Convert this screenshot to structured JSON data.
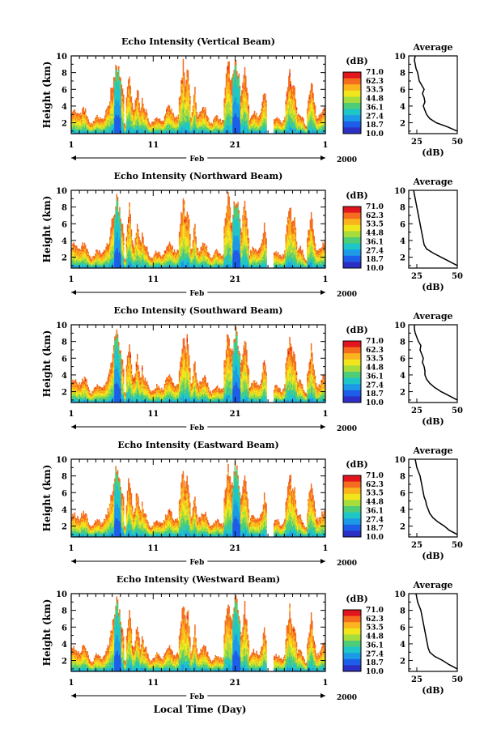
{
  "colorbar": {
    "unit": "(dB)",
    "ticks": [
      "71.0",
      "62.3",
      "53.5",
      "44.8",
      "36.1",
      "27.4",
      "18.7",
      "10.0"
    ],
    "colors": [
      "#e2141d",
      "#f46d1f",
      "#fbb31e",
      "#f1e61c",
      "#a6dc3c",
      "#4fcc78",
      "#1fc6c8",
      "#1c9ae6",
      "#1c5ee8",
      "#2d2ec4"
    ]
  },
  "x_axis": {
    "tick_labels": [
      "1",
      "11",
      "21",
      "1"
    ],
    "month_label": "Feb",
    "year_label": "2000",
    "title": "Local Time (Day)"
  },
  "chart_data": [
    {
      "type": "heatmap",
      "title": "Echo Intensity (Vertical Beam)",
      "ylabel": "Height (km)",
      "xlabel": "Local Time (Day)",
      "ylim": [
        0.7,
        10
      ],
      "y_ticks": [
        "10",
        "8",
        "6",
        "4",
        "2"
      ],
      "x_ticks": [
        "1",
        "11",
        "21",
        "1"
      ],
      "zlim": [
        10.0,
        71.0
      ],
      "profile": {
        "title": "Average",
        "xlabel": "(dB)",
        "x_ticks": [
          "25",
          "50"
        ],
        "xlim": [
          20,
          50
        ],
        "heights": [
          1,
          1.5,
          2,
          2.5,
          3,
          3.5,
          4,
          4.5,
          5,
          5.5,
          6,
          6.5,
          7,
          7.5,
          8,
          8.5,
          9,
          9.5,
          10
        ],
        "values": [
          50,
          44,
          37,
          33,
          31,
          30,
          29,
          30,
          29.5,
          28.5,
          29.5,
          28,
          26.5,
          26,
          25.5,
          24.5,
          24,
          23.5,
          24
        ]
      }
    },
    {
      "type": "heatmap",
      "title": "Echo Intensity (Northward Beam)",
      "ylabel": "Height (km)",
      "xlabel": "Local Time (Day)",
      "ylim": [
        0.7,
        10
      ],
      "y_ticks": [
        "10",
        "8",
        "6",
        "4",
        "2"
      ],
      "x_ticks": [
        "1",
        "11",
        "21",
        "1"
      ],
      "zlim": [
        10.0,
        71.0
      ],
      "profile": {
        "title": "Average",
        "xlabel": "(dB)",
        "x_ticks": [
          "25",
          "50"
        ],
        "xlim": [
          20,
          50
        ],
        "heights": [
          1,
          1.5,
          2,
          2.5,
          3,
          3.5,
          4,
          4.5,
          5,
          5.5,
          6,
          6.5,
          7,
          7.5,
          8,
          8.5,
          9,
          9.5,
          10
        ],
        "values": [
          50,
          45,
          40,
          35,
          31,
          29.5,
          29,
          28.5,
          28,
          27.5,
          27,
          26.5,
          26,
          25.5,
          25,
          24.5,
          24,
          23.5,
          23
        ]
      }
    },
    {
      "type": "heatmap",
      "title": "Echo Intensity (Southward Beam)",
      "ylabel": "Height (km)",
      "xlabel": "Local Time (Day)",
      "ylim": [
        0.7,
        10
      ],
      "y_ticks": [
        "10",
        "8",
        "6",
        "4",
        "2"
      ],
      "x_ticks": [
        "1",
        "11",
        "21",
        "1"
      ],
      "zlim": [
        10.0,
        71.0
      ],
      "profile": {
        "title": "Average",
        "xlabel": "(dB)",
        "x_ticks": [
          "25",
          "50"
        ],
        "xlim": [
          20,
          50
        ],
        "heights": [
          1,
          1.5,
          2,
          2.5,
          3,
          3.5,
          4,
          4.5,
          5,
          5.5,
          6,
          6.5,
          7,
          7.5,
          8,
          8.5,
          9,
          9.5,
          10
        ],
        "values": [
          50,
          45,
          40,
          36,
          33,
          31,
          30,
          30,
          29.5,
          28.5,
          29,
          28,
          27,
          27.5,
          26,
          25,
          24,
          23.5,
          23.5
        ]
      }
    },
    {
      "type": "heatmap",
      "title": "Echo Intensity (Eastward Beam)",
      "ylabel": "Height (km)",
      "xlabel": "Local Time (Day)",
      "ylim": [
        0.7,
        10
      ],
      "y_ticks": [
        "10",
        "8",
        "6",
        "4",
        "2"
      ],
      "x_ticks": [
        "1",
        "11",
        "21",
        "1"
      ],
      "zlim": [
        10.0,
        71.0
      ],
      "profile": {
        "title": "Average",
        "xlabel": "(dB)",
        "x_ticks": [
          "25",
          "50"
        ],
        "xlim": [
          20,
          50
        ],
        "heights": [
          1,
          1.5,
          2,
          2.5,
          3,
          3.5,
          4,
          4.5,
          5,
          5.5,
          6,
          6.5,
          7,
          7.5,
          8,
          8.5,
          9,
          9.5,
          10
        ],
        "values": [
          50,
          45,
          42,
          38,
          35,
          33,
          32,
          31,
          30.5,
          29.5,
          29,
          28.5,
          28,
          27.5,
          27,
          26,
          25,
          24.5,
          24
        ]
      }
    },
    {
      "type": "heatmap",
      "title": "Echo Intensity (Westward Beam)",
      "ylabel": "Height (km)",
      "xlabel": "Local Time (Day)",
      "ylim": [
        0.7,
        10
      ],
      "y_ticks": [
        "10",
        "8",
        "6",
        "4",
        "2"
      ],
      "x_ticks": [
        "1",
        "11",
        "21",
        "1"
      ],
      "zlim": [
        10.0,
        71.0
      ],
      "profile": {
        "title": "Average",
        "xlabel": "(dB)",
        "x_ticks": [
          "25",
          "50"
        ],
        "xlim": [
          20,
          50
        ],
        "heights": [
          1,
          1.5,
          2,
          2.5,
          3,
          3.5,
          4,
          4.5,
          5,
          5.5,
          6,
          6.5,
          7,
          7.5,
          8,
          8.5,
          9,
          9.5,
          10
        ],
        "values": [
          50,
          45,
          41,
          36,
          33,
          32,
          31.5,
          31,
          30.5,
          30,
          29.5,
          29,
          28.5,
          28,
          27.5,
          26.5,
          25.5,
          25,
          24.5
        ]
      }
    }
  ]
}
